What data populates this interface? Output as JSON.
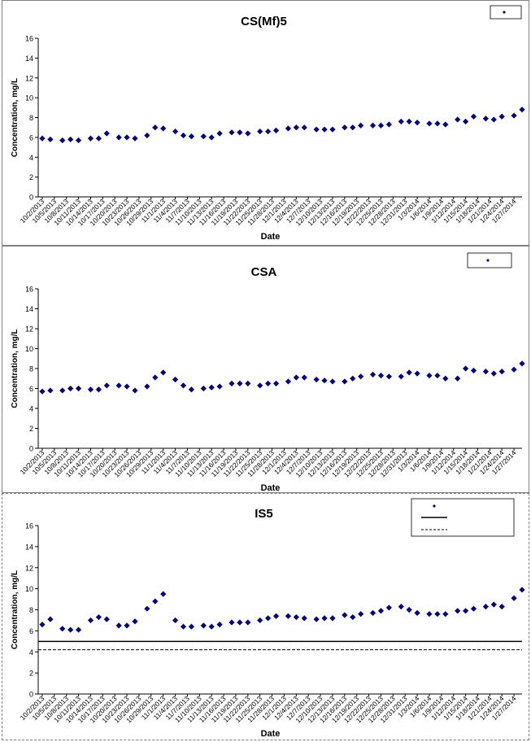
{
  "chart_data": [
    {
      "type": "scatter",
      "title": "CS(Mf)5",
      "xlabel": "Date",
      "ylabel": "Concentration, mg/L",
      "ylim": [
        0,
        16
      ],
      "yticks": [
        "0",
        "2",
        "4",
        "6",
        "8",
        "10",
        "12",
        "14",
        "16"
      ],
      "xtick_labels": [
        "10/2/2013",
        "10/5/2013",
        "10/8/2013",
        "10/11/2013",
        "10/14/2013",
        "10/17/2013",
        "10/20/2013",
        "10/23/2013",
        "10/26/2013",
        "10/29/2013",
        "11/1/2013",
        "11/4/2013",
        "11/7/2013",
        "11/10/2013",
        "11/13/2013",
        "11/16/2013",
        "11/19/2013",
        "11/22/2013",
        "11/25/2013",
        "11/28/2013",
        "12/1/2013",
        "12/4/2013",
        "12/7/2013",
        "12/10/2013",
        "12/13/2013",
        "12/16/2013",
        "12/19/2013",
        "12/22/2013",
        "12/25/2013",
        "12/28/2013",
        "12/31/2013",
        "1/3/2014",
        "1/6/2014",
        "1/9/2014",
        "1/12/2014",
        "1/15/2014",
        "1/18/2014",
        "1/21/2014",
        "1/24/2014",
        "1/27/2014"
      ],
      "xlim": [
        "10/1/2013",
        "1/29/2014"
      ],
      "legend": "top-right",
      "marker_color": "#000080",
      "series": [
        {
          "x": [
            "10/2/2013",
            "10/4/2013",
            "10/7/2013",
            "10/9/2013",
            "10/11/2013",
            "10/14/2013",
            "10/16/2013",
            "10/18/2013",
            "10/21/2013",
            "10/23/2013",
            "10/25/2013",
            "10/28/2013",
            "10/30/2013",
            "11/1/2013",
            "11/4/2013",
            "11/6/2013",
            "11/8/2013",
            "11/11/2013",
            "11/13/2013",
            "11/15/2013",
            "11/18/2013",
            "11/20/2013",
            "11/22/2013",
            "11/25/2013",
            "11/27/2013",
            "11/29/2013",
            "12/2/2013",
            "12/4/2013",
            "12/6/2013",
            "12/9/2013",
            "12/11/2013",
            "12/13/2013",
            "12/16/2013",
            "12/18/2013",
            "12/20/2013",
            "12/23/2013",
            "12/25/2013",
            "12/27/2013",
            "12/30/2013",
            "1/1/2014",
            "1/3/2014",
            "1/6/2014",
            "1/8/2014",
            "1/10/2014",
            "1/13/2014",
            "1/15/2014",
            "1/17/2014",
            "1/20/2014",
            "1/22/2014",
            "1/24/2014",
            "1/27/2014",
            "1/29/2014"
          ],
          "y": [
            5.9,
            5.8,
            5.7,
            5.8,
            5.7,
            5.9,
            5.9,
            6.4,
            6.0,
            6.0,
            5.9,
            6.2,
            7.0,
            6.9,
            6.6,
            6.2,
            6.1,
            6.1,
            6.0,
            6.4,
            6.5,
            6.5,
            6.4,
            6.6,
            6.6,
            6.7,
            6.9,
            7.0,
            7.0,
            6.8,
            6.8,
            6.8,
            7.0,
            7.0,
            7.2,
            7.2,
            7.2,
            7.3,
            7.6,
            7.6,
            7.5,
            7.4,
            7.4,
            7.3,
            7.8,
            7.6,
            8.1,
            7.9,
            7.8,
            8.1,
            8.2,
            8.8
          ]
        }
      ]
    },
    {
      "type": "scatter",
      "title": "CSA",
      "xlabel": "Date",
      "ylabel": "Concentration, mg/L",
      "ylim": [
        0,
        16
      ],
      "yticks": [
        "0",
        "2",
        "4",
        "6",
        "8",
        "10",
        "12",
        "14",
        "16"
      ],
      "xtick_labels": [
        "10/2/2013",
        "10/5/2013",
        "10/8/2013",
        "10/11/2013",
        "10/14/2013",
        "10/17/2013",
        "10/20/2013",
        "10/23/2013",
        "10/26/2013",
        "10/29/2013",
        "11/1/2013",
        "11/4/2013",
        "11/7/2013",
        "11/10/2013",
        "11/13/2013",
        "11/16/2013",
        "11/19/2013",
        "11/22/2013",
        "11/25/2013",
        "11/28/2013",
        "12/1/2013",
        "12/4/2013",
        "12/7/2013",
        "12/10/2013",
        "12/13/2013",
        "12/16/2013",
        "12/19/2013",
        "12/22/2013",
        "12/25/2013",
        "12/28/2013",
        "12/31/2013",
        "1/3/2014",
        "1/6/2014",
        "1/9/2014",
        "1/12/2014",
        "1/15/2014",
        "1/18/2014",
        "1/21/2014",
        "1/24/2014",
        "1/27/2014"
      ],
      "xlim": [
        "10/1/2013",
        "1/29/2014"
      ],
      "legend": "top-right",
      "marker_color": "#000080",
      "series": [
        {
          "x": [
            "10/2/2013",
            "10/4/2013",
            "10/7/2013",
            "10/9/2013",
            "10/11/2013",
            "10/14/2013",
            "10/16/2013",
            "10/18/2013",
            "10/21/2013",
            "10/23/2013",
            "10/25/2013",
            "10/28/2013",
            "10/30/2013",
            "11/1/2013",
            "11/4/2013",
            "11/6/2013",
            "11/8/2013",
            "11/11/2013",
            "11/13/2013",
            "11/15/2013",
            "11/18/2013",
            "11/20/2013",
            "11/22/2013",
            "11/25/2013",
            "11/27/2013",
            "11/29/2013",
            "12/2/2013",
            "12/4/2013",
            "12/6/2013",
            "12/9/2013",
            "12/11/2013",
            "12/13/2013",
            "12/16/2013",
            "12/18/2013",
            "12/20/2013",
            "12/23/2013",
            "12/25/2013",
            "12/27/2013",
            "12/30/2013",
            "1/1/2014",
            "1/3/2014",
            "1/6/2014",
            "1/8/2014",
            "1/10/2014",
            "1/13/2014",
            "1/15/2014",
            "1/17/2014",
            "1/20/2014",
            "1/22/2014",
            "1/24/2014",
            "1/27/2014",
            "1/29/2014"
          ],
          "y": [
            5.7,
            5.8,
            5.8,
            6.0,
            6.0,
            5.9,
            5.9,
            6.3,
            6.3,
            6.2,
            5.8,
            6.2,
            7.1,
            7.6,
            6.9,
            6.3,
            5.9,
            6.0,
            6.1,
            6.2,
            6.5,
            6.5,
            6.5,
            6.3,
            6.5,
            6.5,
            6.7,
            7.1,
            7.1,
            6.9,
            6.8,
            6.7,
            6.7,
            7.0,
            7.2,
            7.4,
            7.3,
            7.2,
            7.2,
            7.6,
            7.5,
            7.3,
            7.3,
            7.0,
            7.0,
            8.0,
            7.8,
            7.7,
            7.5,
            7.7,
            7.9,
            8.5
          ]
        }
      ]
    },
    {
      "type": "scatter",
      "title": "IS5",
      "xlabel": "Date",
      "ylabel": "Concentration, mg/L",
      "ylim": [
        0,
        16
      ],
      "yticks": [
        "0",
        "2",
        "4",
        "6",
        "8",
        "10",
        "12",
        "14",
        "16"
      ],
      "xtick_labels": [
        "10/2/2013",
        "10/5/2013",
        "10/8/2013",
        "10/11/2013",
        "10/14/2013",
        "10/17/2013",
        "10/20/2013",
        "10/23/2013",
        "10/26/2013",
        "10/29/2013",
        "11/1/2013",
        "11/4/2013",
        "11/7/2013",
        "11/10/2013",
        "11/13/2013",
        "11/16/2013",
        "11/19/2013",
        "11/22/2013",
        "11/25/2013",
        "11/28/2013",
        "12/1/2013",
        "12/4/2013",
        "12/7/2013",
        "12/10/2013",
        "12/13/2013",
        "12/16/2013",
        "12/19/2013",
        "12/22/2013",
        "12/25/2013",
        "12/28/2013",
        "12/31/2013",
        "1/3/2014",
        "1/6/2014",
        "1/9/2014",
        "1/12/2014",
        "1/15/2014",
        "1/18/2014",
        "1/21/2014",
        "1/24/2014",
        "1/27/2014"
      ],
      "xlim": [
        "10/1/2013",
        "1/29/2014"
      ],
      "legend": "top-right",
      "marker_color": "#000080",
      "reference_lines": [
        {
          "y": 5.0,
          "style": "solid"
        },
        {
          "y": 4.2,
          "style": "dashed"
        }
      ],
      "series": [
        {
          "x": [
            "10/2/2013",
            "10/4/2013",
            "10/7/2013",
            "10/9/2013",
            "10/11/2013",
            "10/14/2013",
            "10/16/2013",
            "10/18/2013",
            "10/21/2013",
            "10/23/2013",
            "10/25/2013",
            "10/28/2013",
            "10/30/2013",
            "11/1/2013",
            "11/4/2013",
            "11/6/2013",
            "11/8/2013",
            "11/11/2013",
            "11/13/2013",
            "11/15/2013",
            "11/18/2013",
            "11/20/2013",
            "11/22/2013",
            "11/25/2013",
            "11/27/2013",
            "11/29/2013",
            "12/2/2013",
            "12/4/2013",
            "12/6/2013",
            "12/9/2013",
            "12/11/2013",
            "12/13/2013",
            "12/16/2013",
            "12/18/2013",
            "12/20/2013",
            "12/23/2013",
            "12/25/2013",
            "12/27/2013",
            "12/30/2013",
            "1/1/2014",
            "1/3/2014",
            "1/6/2014",
            "1/8/2014",
            "1/10/2014",
            "1/13/2014",
            "1/15/2014",
            "1/17/2014",
            "1/20/2014",
            "1/22/2014",
            "1/24/2014",
            "1/27/2014",
            "1/29/2014"
          ],
          "y": [
            6.6,
            7.1,
            6.2,
            6.1,
            6.1,
            7.0,
            7.3,
            7.1,
            6.5,
            6.5,
            6.9,
            8.1,
            8.8,
            9.5,
            7.0,
            6.4,
            6.4,
            6.5,
            6.4,
            6.6,
            6.8,
            6.8,
            6.8,
            7.0,
            7.2,
            7.4,
            7.4,
            7.3,
            7.2,
            7.1,
            7.2,
            7.2,
            7.5,
            7.3,
            7.6,
            7.7,
            7.9,
            8.2,
            8.3,
            8.0,
            7.7,
            7.6,
            7.6,
            7.6,
            7.9,
            7.9,
            8.1,
            8.3,
            8.5,
            8.3,
            9.1,
            9.9
          ]
        }
      ]
    }
  ]
}
